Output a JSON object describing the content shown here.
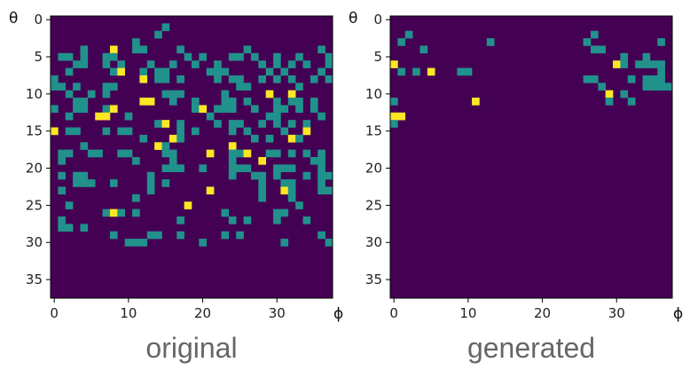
{
  "chart_data": [
    {
      "type": "heatmap",
      "caption": "original",
      "xlabel": "ϕ",
      "ylabel": "θ",
      "rows": 38,
      "cols": 38,
      "x_ticks": [
        0,
        10,
        20,
        30
      ],
      "y_ticks": [
        0,
        5,
        10,
        15,
        20,
        25,
        30,
        35
      ],
      "colors": {
        "0": "#440154",
        "1": "#21918c",
        "2": "#fde725"
      },
      "cells": [
        "00000000000000000000000000000000000000",
        "00000000000000010000000000000000000000",
        "00000000000000100000000000000000000000",
        "00000000000100000000000000000000000000",
        "00001000200110000100000000100000000010",
        "01101001100000000010100011010010010001",
        "00011001010001001001001000001010101001",
        "00100000120010110000011100000101000010",
        "10000000000020110100001011001010100101",
        "11010001100000000000000001100000010000",
        "00100101000000011100000100000200200000",
        "00011000000022001001000110100010110100",
        "10011001200000000001201110010011010100",
        "00100022001000000000010000000110000010",
        "00000000000000120100001011001010101000",
        "20110001011000000101000010100001002000",
        "00000000000010002100000000010100210000",
        "00001000000000210000000020000000000000",
        "01100110011000011000020011200110101010",
        "01000000000100001000000010002000000110",
        "00000000000000011100100011100011100010",
        "01011000000001000000000010011010001011",
        "00011100100001010000000000001001100010",
        "01000000000001000000020000001002100011",
        "00000000000100000000000000001000100000",
        "00100000000000000020000000000000010000",
        "00000001210100000000000100000011000000",
        "01000000000000000100000010100010001000",
        "01101000000000000000000000000000000000",
        "00000000100001100100000101000000000010",
        "00000000001110000000100000000001000001",
        "00000000000000000000000000000000000000",
        "00000000000000000000000000000000000000",
        "00000000000000000000000000000000000000",
        "00000000000000000000000000000000000000",
        "00000000000000000000000000000000000000",
        "00000000000000000000000000000000000000",
        "00000000000000000000000000000000000000"
      ]
    },
    {
      "type": "heatmap",
      "caption": "generated",
      "xlabel": "ϕ",
      "ylabel": "θ",
      "rows": 38,
      "cols": 38,
      "x_ticks": [
        0,
        10,
        20,
        30
      ],
      "y_ticks": [
        0,
        5,
        10,
        15,
        20,
        25,
        30,
        35
      ],
      "colors": {
        "0": "#440154",
        "1": "#21918c",
        "2": "#fde725"
      },
      "cells": [
        "00000000000000000000000000000000000000",
        "00000000000000000000000000000000000000",
        "00100000000000000000000000010000000000",
        "01000000000001000000000000100000000010",
        "00001000000000000000000000011000000000",
        "00000000000000000000000000000001001000",
        "20000000000000000000000000000021011110",
        "01010200011000000000000000000000000010",
        "00000000000000000000000000110000101110",
        "00000000000000000000000000001000001111",
        "00000000000000000000000000000201000000",
        "10000000000200000000000000000100100000",
        "00000000000000000000000000000000000000",
        "22000000000000000000000000000000000000",
        "10000000000000000000000000000000000000",
        "00000000000000000000000000000000000000",
        "00000000000000000000000000000000000000",
        "00000000000000000000000000000000000000",
        "00000000000000000000000000000000000000",
        "00000000000000000000000000000000000000",
        "00000000000000000000000000000000000000",
        "00000000000000000000000000000000000000",
        "00000000000000000000000000000000000000",
        "00000000000000000000000000000000000000",
        "00000000000000000000000000000000000000",
        "00000000000000000000000000000000000000",
        "00000000000000000000000000000000000000",
        "00000000000000000000000000000000000000",
        "00000000000000000000000000000000000000",
        "00000000000000000000000000000000000000",
        "00000000000000000000000000000000000000",
        "00000000000000000000000000000000000000",
        "00000000000000000000000000000000000000",
        "00000000000000000000000000000000000000",
        "00000000000000000000000000000000000000",
        "00000000000000000000000000000000000000",
        "00000000000000000000000000000000000000",
        "00000000000000000000000000000000000000"
      ]
    }
  ]
}
